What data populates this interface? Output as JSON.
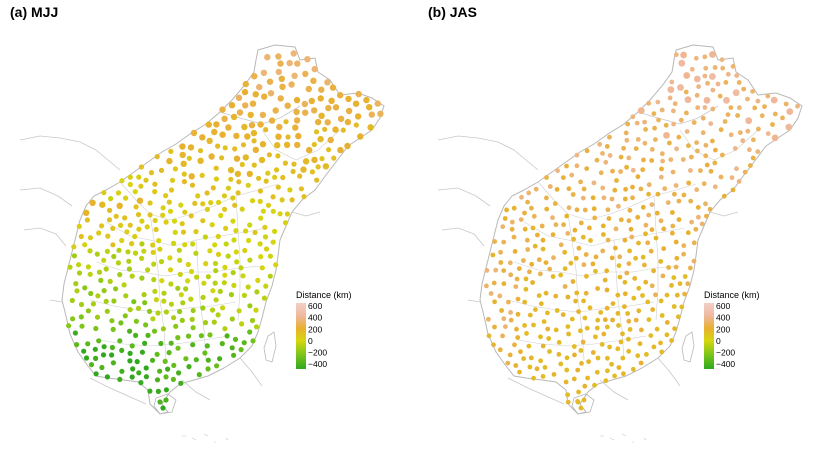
{
  "panels": [
    {
      "id": "a",
      "title": "(a) MJJ"
    },
    {
      "id": "b",
      "title": "(b) JAS"
    }
  ],
  "legend": {
    "title": "Distance (km)",
    "ticks": [
      "600",
      "400",
      "200",
      "0",
      "−200",
      "−400"
    ],
    "tick_values": [
      600,
      400,
      200,
      0,
      -200,
      -400
    ],
    "range": [
      -450,
      620
    ],
    "color_stops": [
      {
        "value": 600,
        "color": "#f2cfc8"
      },
      {
        "value": 400,
        "color": "#efb89c"
      },
      {
        "value": 200,
        "color": "#e8b030"
      },
      {
        "value": 0,
        "color": "#d6d60e"
      },
      {
        "value": -200,
        "color": "#7cc51a"
      },
      {
        "value": -400,
        "color": "#2fa81e"
      }
    ]
  },
  "colors": {
    "borders": "#b8b8b8",
    "background": "#ffffff"
  }
}
